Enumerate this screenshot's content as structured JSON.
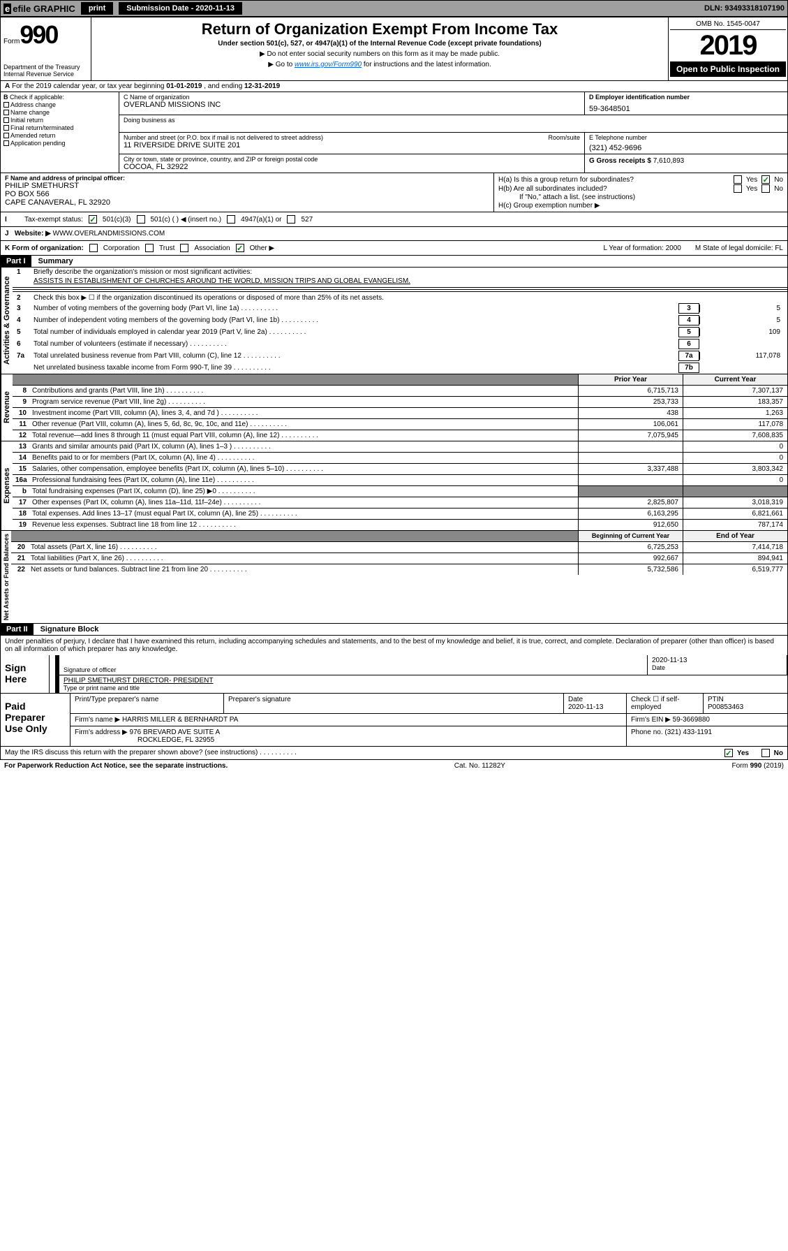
{
  "top": {
    "efile": "efile GRAPHIC",
    "print": "print",
    "sub_date_label": "Submission Date - 2020-11-13",
    "dln": "DLN: 93493318107190"
  },
  "header": {
    "form_word": "Form",
    "form_num": "990",
    "title": "Return of Organization Exempt From Income Tax",
    "subtitle": "Under section 501(c), 527, or 4947(a)(1) of the Internal Revenue Code (except private foundations)",
    "instr1": "▶ Do not enter social security numbers on this form as it may be made public.",
    "instr2_pre": "▶ Go to ",
    "instr2_link": "www.irs.gov/Form990",
    "instr2_post": " for instructions and the latest information.",
    "dept": "Department of the Treasury\nInternal Revenue Service",
    "omb": "OMB No. 1545-0047",
    "year": "2019",
    "public": "Open to Public Inspection"
  },
  "rowA": {
    "text_pre": "For the 2019 calendar year, or tax year beginning ",
    "begin": "01-01-2019",
    "mid": " , and ending ",
    "end": "12-31-2019"
  },
  "B": {
    "label": "Check if applicable:",
    "items": [
      "Address change",
      "Name change",
      "Initial return",
      "Final return/terminated",
      "Amended return",
      "Application pending"
    ]
  },
  "C": {
    "name_label": "C Name of organization",
    "name": "OVERLAND MISSIONS INC",
    "dba_label": "Doing business as",
    "addr_label": "Number and street (or P.O. box if mail is not delivered to street address)",
    "addr": "11 RIVERSIDE DRIVE SUITE 201",
    "room_label": "Room/suite",
    "city_label": "City or town, state or province, country, and ZIP or foreign postal code",
    "city": "COCOA, FL  32922"
  },
  "D": {
    "label": "D Employer identification number",
    "value": "59-3648501"
  },
  "E": {
    "label": "E Telephone number",
    "value": "(321) 452-9696"
  },
  "G": {
    "label": "G Gross receipts $ ",
    "value": "7,610,893"
  },
  "F": {
    "label": "F  Name and address of principal officer:",
    "name": "PHILIP SMETHURST",
    "addr1": "PO BOX 566",
    "addr2": "CAPE CANAVERAL, FL  32920"
  },
  "H": {
    "a": "H(a)  Is this a group return for subordinates?",
    "b": "H(b)  Are all subordinates included?",
    "b_note": "If \"No,\" attach a list. (see instructions)",
    "c": "H(c)  Group exemption number ▶",
    "yes": "Yes",
    "no": "No"
  },
  "I": {
    "label": "Tax-exempt status:",
    "opts": [
      "501(c)(3)",
      "501(c) (  ) ◀ (insert no.)",
      "4947(a)(1) or",
      "527"
    ]
  },
  "J": {
    "label": "Website: ▶",
    "value": " WWW.OVERLANDMISSIONS.COM"
  },
  "K": {
    "label": "K Form of organization:",
    "opts": [
      "Corporation",
      "Trust",
      "Association",
      "Other ▶"
    ],
    "L": "L Year of formation: 2000",
    "M": "M State of legal domicile: FL"
  },
  "partI": {
    "label": "Part I",
    "title": "Summary"
  },
  "gov": {
    "label": "Activities & Governance",
    "l1": "Briefly describe the organization's mission or most significant activities:",
    "l1v": "ASSISTS IN ESTABLISHMENT OF CHURCHES AROUND THE WORLD, MISSION TRIPS AND GLOBAL EVANGELISM.",
    "l2": "Check this box ▶ ☐  if the organization discontinued its operations or disposed of more than 25% of its net assets.",
    "rows": [
      {
        "n": "3",
        "t": "Number of voting members of the governing body (Part VI, line 1a)",
        "b": "3",
        "v": "5"
      },
      {
        "n": "4",
        "t": "Number of independent voting members of the governing body (Part VI, line 1b)",
        "b": "4",
        "v": "5"
      },
      {
        "n": "5",
        "t": "Total number of individuals employed in calendar year 2019 (Part V, line 2a)",
        "b": "5",
        "v": "109"
      },
      {
        "n": "6",
        "t": "Total number of volunteers (estimate if necessary)",
        "b": "6",
        "v": ""
      },
      {
        "n": "7a",
        "t": "Total unrelated business revenue from Part VIII, column (C), line 12",
        "b": "7a",
        "v": "117,078"
      },
      {
        "n": "",
        "t": "Net unrelated business taxable income from Form 990-T, line 39",
        "b": "7b",
        "v": ""
      }
    ]
  },
  "rev": {
    "label": "Revenue",
    "py": "Prior Year",
    "cy": "Current Year",
    "rows": [
      {
        "n": "8",
        "t": "Contributions and grants (Part VIII, line 1h)",
        "py": "6,715,713",
        "cy": "7,307,137"
      },
      {
        "n": "9",
        "t": "Program service revenue (Part VIII, line 2g)",
        "py": "253,733",
        "cy": "183,357"
      },
      {
        "n": "10",
        "t": "Investment income (Part VIII, column (A), lines 3, 4, and 7d )",
        "py": "438",
        "cy": "1,263"
      },
      {
        "n": "11",
        "t": "Other revenue (Part VIII, column (A), lines 5, 6d, 8c, 9c, 10c, and 11e)",
        "py": "106,061",
        "cy": "117,078"
      },
      {
        "n": "12",
        "t": "Total revenue—add lines 8 through 11 (must equal Part VIII, column (A), line 12)",
        "py": "7,075,945",
        "cy": "7,608,835"
      }
    ]
  },
  "exp": {
    "label": "Expenses",
    "rows": [
      {
        "n": "13",
        "t": "Grants and similar amounts paid (Part IX, column (A), lines 1–3 )",
        "py": "",
        "cy": "0"
      },
      {
        "n": "14",
        "t": "Benefits paid to or for members (Part IX, column (A), line 4)",
        "py": "",
        "cy": "0"
      },
      {
        "n": "15",
        "t": "Salaries, other compensation, employee benefits (Part IX, column (A), lines 5–10)",
        "py": "3,337,488",
        "cy": "3,803,342"
      },
      {
        "n": "16a",
        "t": "Professional fundraising fees (Part IX, column (A), line 11e)",
        "py": "",
        "cy": "0"
      },
      {
        "n": "b",
        "t": "Total fundraising expenses (Part IX, column (D), line 25) ▶0",
        "py": "",
        "cy": "",
        "black": true
      },
      {
        "n": "17",
        "t": "Other expenses (Part IX, column (A), lines 11a–11d, 11f–24e)",
        "py": "2,825,807",
        "cy": "3,018,319"
      },
      {
        "n": "18",
        "t": "Total expenses. Add lines 13–17 (must equal Part IX, column (A), line 25)",
        "py": "6,163,295",
        "cy": "6,821,661"
      },
      {
        "n": "19",
        "t": "Revenue less expenses. Subtract line 18 from line 12",
        "py": "912,650",
        "cy": "787,174"
      }
    ]
  },
  "na": {
    "label": "Net Assets or Fund Balances",
    "py": "Beginning of Current Year",
    "cy": "End of Year",
    "rows": [
      {
        "n": "20",
        "t": "Total assets (Part X, line 16)",
        "py": "6,725,253",
        "cy": "7,414,718"
      },
      {
        "n": "21",
        "t": "Total liabilities (Part X, line 26)",
        "py": "992,667",
        "cy": "894,941"
      },
      {
        "n": "22",
        "t": "Net assets or fund balances. Subtract line 21 from line 20",
        "py": "5,732,586",
        "cy": "6,519,777"
      }
    ]
  },
  "partII": {
    "label": "Part II",
    "title": "Signature Block"
  },
  "sig": {
    "perjury": "Under penalties of perjury, I declare that I have examined this return, including accompanying schedules and statements, and to the best of my knowledge and belief, it is true, correct, and complete. Declaration of preparer (other than officer) is based on all information of which preparer has any knowledge.",
    "sign_here": "Sign Here",
    "sig_label": "Signature of officer",
    "date": "2020-11-13",
    "date_label": "Date",
    "name": "PHILIP SMETHURST  DIRECTOR- PRESIDENT",
    "name_label": "Type or print name and title"
  },
  "prep": {
    "label": "Paid Preparer Use Only",
    "h1": "Print/Type preparer's name",
    "h2": "Preparer's signature",
    "h3": "Date",
    "h4": "Check ☐ if self-employed",
    "h5": "PTIN",
    "date": "2020-11-13",
    "ptin": "P00853463",
    "firm_name_label": "Firm's name    ▶",
    "firm_name": "HARRIS MILLER & BERNHARDT PA",
    "firm_ein_label": "Firm's EIN ▶",
    "firm_ein": "59-3669880",
    "firm_addr_label": "Firm's address ▶",
    "firm_addr1": "976 BREVARD AVE SUITE A",
    "firm_addr2": "ROCKLEDGE, FL  32955",
    "phone_label": "Phone no.",
    "phone": "(321) 433-1191"
  },
  "footer": {
    "discuss": "May the IRS discuss this return with the preparer shown above? (see instructions)",
    "yes": "Yes",
    "no": "No",
    "pra": "For Paperwork Reduction Act Notice, see the separate instructions.",
    "cat": "Cat. No. 11282Y",
    "form": "Form 990 (2019)"
  }
}
